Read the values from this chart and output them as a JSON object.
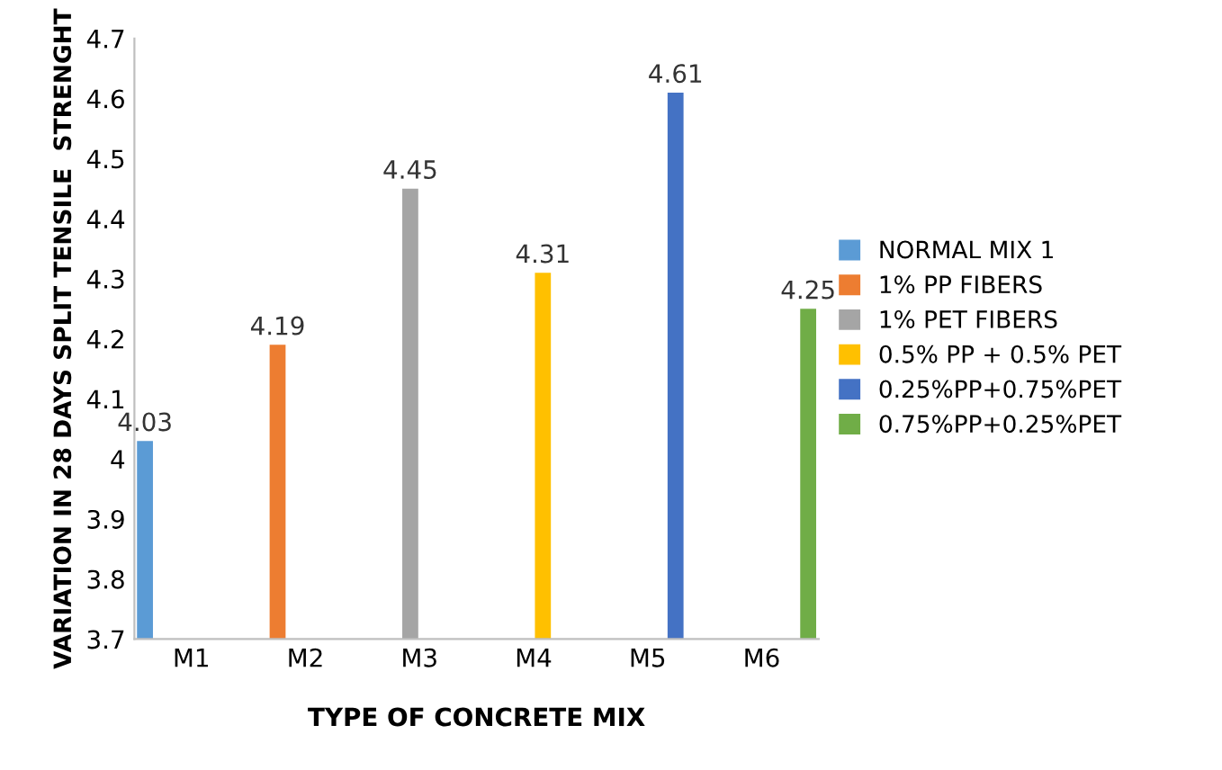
{
  "chart_data": {
    "type": "bar",
    "xlabel": "TYPE OF CONCRETE MIX",
    "ylabel": "VARIATION IN 28 DAYS SPLIT TENSILE  STRENGHT",
    "categories": [
      "M1",
      "M2",
      "M3",
      "M4",
      "M5",
      "M6"
    ],
    "series": [
      {
        "name": "NORMAL MIX 1",
        "color": "#5b9bd5",
        "values": [
          4.03,
          null,
          null,
          null,
          null,
          null
        ]
      },
      {
        "name": "1% PP FIBERS",
        "color": "#ed7d31",
        "values": [
          null,
          4.19,
          null,
          null,
          null,
          null
        ]
      },
      {
        "name": "1% PET FIBERS",
        "color": "#a5a5a5",
        "values": [
          null,
          null,
          4.45,
          null,
          null,
          null
        ]
      },
      {
        "name": "0.5% PP + 0.5% PET",
        "color": "#ffc000",
        "values": [
          null,
          null,
          null,
          4.31,
          null,
          null
        ]
      },
      {
        "name": "0.25%PP+0.75%PET",
        "color": "#4472c4",
        "values": [
          null,
          null,
          null,
          null,
          4.61,
          null
        ]
      },
      {
        "name": "0.75%PP+0.25%PET",
        "color": "#70ad47",
        "values": [
          null,
          null,
          null,
          null,
          null,
          4.25
        ]
      }
    ],
    "ylim": [
      3.7,
      4.7
    ],
    "yticks": [
      3.7,
      3.8,
      3.9,
      4,
      4.1,
      4.2,
      4.3,
      4.4,
      4.5,
      4.6,
      4.7
    ],
    "grid": false,
    "legend": "right",
    "data_labels": true
  }
}
